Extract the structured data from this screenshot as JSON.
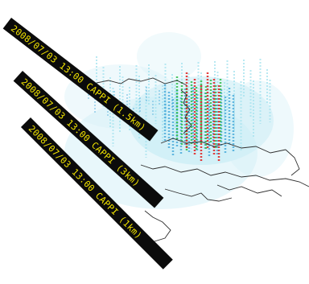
{
  "banners": [
    {
      "text": "2008/07/03 13:00 CAPPI (1.5km)"
    },
    {
      "text": "2008/07/03 13:00 CAPPI (3km)"
    },
    {
      "text": "2008/07/03 13:00 CAPPI (1km)"
    }
  ],
  "colors": {
    "background": "#ffffff",
    "banner_fill": "#0b0b0b",
    "banner_text": "#f2e400",
    "coastline": "#2f2f2f",
    "echo_low": "#a8e4f0",
    "echo_mid": "#3aa3d8",
    "echo_green": "#2fbf4a",
    "echo_high": "#e02a2a"
  }
}
